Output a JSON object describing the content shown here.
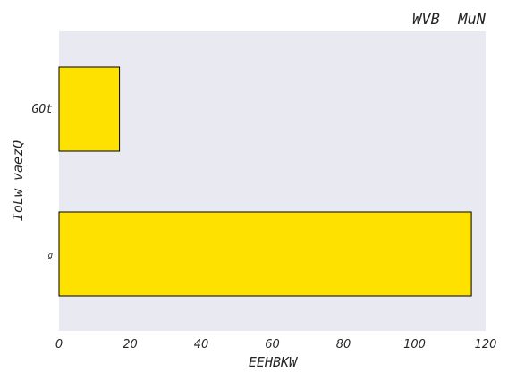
{
  "chart_data": {
    "type": "bar",
    "orientation": "horizontal",
    "title": "WVB  MuN",
    "xlabel": "EEHBKW",
    "ylabel": "IoLw vaezQ",
    "categories": [
      "GOt",
      "g"
    ],
    "values": [
      17,
      116
    ],
    "xlim": [
      0,
      120
    ],
    "xticks": [
      0,
      20,
      40,
      60,
      80,
      100,
      120
    ],
    "grid": false,
    "bar_color": "#FFE100",
    "bar_edge_color": "#000000",
    "plot_background": "#E9E9F2"
  }
}
